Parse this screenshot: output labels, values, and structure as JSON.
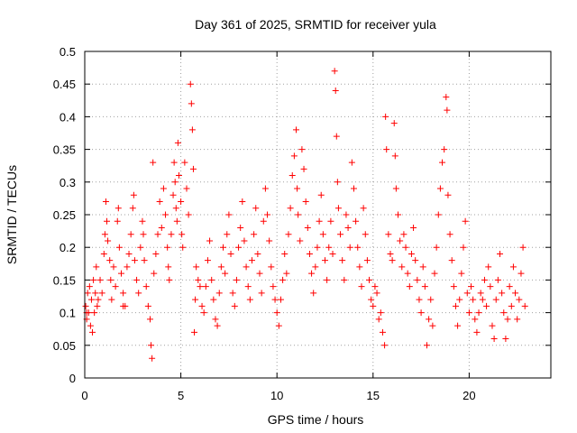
{
  "chart_data": {
    "type": "scatter",
    "title": "Day 361 of 2025, SRMTID for receiver yula",
    "xlabel": "GPS time / hours",
    "ylabel": "SRMTID / TECUs",
    "xlim": [
      0,
      24.25
    ],
    "ylim": [
      0,
      0.5
    ],
    "x_ticks": [
      0,
      5,
      10,
      15,
      20
    ],
    "x_tick_labels": [
      "0",
      "5",
      "10",
      "15",
      "20"
    ],
    "y_ticks": [
      0,
      0.05,
      0.1,
      0.15,
      0.2,
      0.25,
      0.3,
      0.35,
      0.4,
      0.45,
      0.5
    ],
    "y_tick_labels": [
      "0",
      "0.05",
      "0.1",
      "0.15",
      "0.2",
      "0.25",
      "0.3",
      "0.35",
      "0.4",
      "0.45",
      "0.5"
    ],
    "grid": true,
    "marker": "+",
    "color": "#ff0000",
    "series": [
      {
        "name": "SRMTID",
        "points": [
          [
            0.05,
            0.11
          ],
          [
            0.1,
            0.09
          ],
          [
            0.15,
            0.13
          ],
          [
            0.2,
            0.1
          ],
          [
            0.25,
            0.14
          ],
          [
            0.3,
            0.08
          ],
          [
            0.35,
            0.12
          ],
          [
            0.4,
            0.07
          ],
          [
            0.45,
            0.15
          ],
          [
            0.5,
            0.1
          ],
          [
            0.55,
            0.13
          ],
          [
            0.6,
            0.17
          ],
          [
            0.65,
            0.11
          ],
          [
            0.7,
            0.12
          ],
          [
            0.8,
            0.15
          ],
          [
            0.9,
            0.13
          ],
          [
            1.0,
            0.19
          ],
          [
            1.05,
            0.22
          ],
          [
            1.1,
            0.27
          ],
          [
            1.15,
            0.24
          ],
          [
            1.2,
            0.21
          ],
          [
            1.3,
            0.18
          ],
          [
            1.35,
            0.15
          ],
          [
            1.4,
            0.12
          ],
          [
            1.5,
            0.17
          ],
          [
            1.6,
            0.14
          ],
          [
            1.7,
            0.24
          ],
          [
            1.75,
            0.26
          ],
          [
            1.8,
            0.2
          ],
          [
            1.9,
            0.16
          ],
          [
            2.0,
            0.13
          ],
          [
            2.1,
            0.11
          ],
          [
            2.2,
            0.17
          ],
          [
            2.3,
            0.19
          ],
          [
            2.4,
            0.22
          ],
          [
            2.5,
            0.26
          ],
          [
            2.55,
            0.28
          ],
          [
            2.6,
            0.18
          ],
          [
            2.7,
            0.15
          ],
          [
            2.8,
            0.13
          ],
          [
            2.9,
            0.2
          ],
          [
            3.0,
            0.24
          ],
          [
            3.05,
            0.22
          ],
          [
            3.1,
            0.18
          ],
          [
            3.2,
            0.14
          ],
          [
            3.3,
            0.11
          ],
          [
            3.4,
            0.09
          ],
          [
            3.45,
            0.05
          ],
          [
            3.5,
            0.03
          ],
          [
            3.55,
            0.33
          ],
          [
            3.6,
            0.16
          ],
          [
            3.7,
            0.19
          ],
          [
            3.8,
            0.22
          ],
          [
            3.9,
            0.27
          ],
          [
            4.0,
            0.23
          ],
          [
            4.1,
            0.29
          ],
          [
            4.2,
            0.25
          ],
          [
            4.3,
            0.2
          ],
          [
            4.35,
            0.17
          ],
          [
            4.4,
            0.15
          ],
          [
            4.5,
            0.22
          ],
          [
            4.6,
            0.28
          ],
          [
            4.65,
            0.33
          ],
          [
            4.7,
            0.3
          ],
          [
            4.75,
            0.26
          ],
          [
            4.8,
            0.24
          ],
          [
            4.85,
            0.36
          ],
          [
            4.9,
            0.31
          ],
          [
            5.0,
            0.27
          ],
          [
            5.05,
            0.22
          ],
          [
            5.1,
            0.2
          ],
          [
            5.2,
            0.33
          ],
          [
            5.3,
            0.29
          ],
          [
            5.4,
            0.25
          ],
          [
            5.5,
            0.45
          ],
          [
            5.55,
            0.42
          ],
          [
            5.6,
            0.38
          ],
          [
            5.65,
            0.32
          ],
          [
            5.7,
            0.07
          ],
          [
            5.75,
            0.12
          ],
          [
            5.8,
            0.17
          ],
          [
            5.9,
            0.15
          ],
          [
            6.0,
            0.14
          ],
          [
            6.1,
            0.11
          ],
          [
            6.2,
            0.1
          ],
          [
            6.3,
            0.14
          ],
          [
            6.4,
            0.18
          ],
          [
            6.5,
            0.21
          ],
          [
            6.6,
            0.15
          ],
          [
            6.7,
            0.12
          ],
          [
            6.8,
            0.09
          ],
          [
            6.9,
            0.08
          ],
          [
            7.0,
            0.13
          ],
          [
            7.1,
            0.17
          ],
          [
            7.2,
            0.2
          ],
          [
            7.3,
            0.16
          ],
          [
            7.4,
            0.22
          ],
          [
            7.5,
            0.25
          ],
          [
            7.6,
            0.19
          ],
          [
            7.7,
            0.13
          ],
          [
            7.8,
            0.11
          ],
          [
            7.9,
            0.15
          ],
          [
            8.0,
            0.2
          ],
          [
            8.1,
            0.23
          ],
          [
            8.2,
            0.27
          ],
          [
            8.3,
            0.21
          ],
          [
            8.4,
            0.17
          ],
          [
            8.5,
            0.14
          ],
          [
            8.6,
            0.12
          ],
          [
            8.7,
            0.18
          ],
          [
            8.8,
            0.22
          ],
          [
            8.9,
            0.26
          ],
          [
            9.0,
            0.19
          ],
          [
            9.1,
            0.16
          ],
          [
            9.2,
            0.13
          ],
          [
            9.3,
            0.24
          ],
          [
            9.4,
            0.29
          ],
          [
            9.5,
            0.25
          ],
          [
            9.6,
            0.21
          ],
          [
            9.7,
            0.17
          ],
          [
            9.8,
            0.14
          ],
          [
            9.9,
            0.12
          ],
          [
            10.0,
            0.1
          ],
          [
            10.1,
            0.08
          ],
          [
            10.2,
            0.12
          ],
          [
            10.3,
            0.15
          ],
          [
            10.4,
            0.19
          ],
          [
            10.5,
            0.16
          ],
          [
            10.6,
            0.22
          ],
          [
            10.7,
            0.26
          ],
          [
            10.8,
            0.31
          ],
          [
            10.9,
            0.34
          ],
          [
            11.0,
            0.38
          ],
          [
            11.05,
            0.29
          ],
          [
            11.1,
            0.25
          ],
          [
            11.2,
            0.21
          ],
          [
            11.3,
            0.35
          ],
          [
            11.4,
            0.32
          ],
          [
            11.5,
            0.27
          ],
          [
            11.6,
            0.23
          ],
          [
            11.7,
            0.19
          ],
          [
            11.8,
            0.16
          ],
          [
            11.9,
            0.13
          ],
          [
            12.0,
            0.17
          ],
          [
            12.1,
            0.2
          ],
          [
            12.2,
            0.24
          ],
          [
            12.3,
            0.28
          ],
          [
            12.4,
            0.22
          ],
          [
            12.5,
            0.18
          ],
          [
            12.6,
            0.15
          ],
          [
            12.7,
            0.2
          ],
          [
            12.8,
            0.24
          ],
          [
            12.9,
            0.19
          ],
          [
            13.0,
            0.47
          ],
          [
            13.05,
            0.44
          ],
          [
            13.1,
            0.37
          ],
          [
            13.15,
            0.3
          ],
          [
            13.2,
            0.26
          ],
          [
            13.3,
            0.22
          ],
          [
            13.4,
            0.18
          ],
          [
            13.5,
            0.15
          ],
          [
            13.6,
            0.25
          ],
          [
            13.7,
            0.23
          ],
          [
            13.8,
            0.2
          ],
          [
            13.9,
            0.33
          ],
          [
            14.0,
            0.29
          ],
          [
            14.1,
            0.24
          ],
          [
            14.2,
            0.2
          ],
          [
            14.3,
            0.17
          ],
          [
            14.4,
            0.14
          ],
          [
            14.5,
            0.26
          ],
          [
            14.6,
            0.22
          ],
          [
            14.7,
            0.18
          ],
          [
            14.8,
            0.15
          ],
          [
            14.9,
            0.12
          ],
          [
            15.0,
            0.11
          ],
          [
            15.1,
            0.14
          ],
          [
            15.2,
            0.13
          ],
          [
            15.3,
            0.09
          ],
          [
            15.4,
            0.1
          ],
          [
            15.5,
            0.07
          ],
          [
            15.6,
            0.05
          ],
          [
            15.65,
            0.4
          ],
          [
            15.7,
            0.35
          ],
          [
            15.8,
            0.22
          ],
          [
            15.9,
            0.19
          ],
          [
            16.0,
            0.18
          ],
          [
            16.1,
            0.39
          ],
          [
            16.15,
            0.34
          ],
          [
            16.2,
            0.29
          ],
          [
            16.3,
            0.25
          ],
          [
            16.4,
            0.21
          ],
          [
            16.5,
            0.17
          ],
          [
            16.6,
            0.22
          ],
          [
            16.7,
            0.2
          ],
          [
            16.8,
            0.16
          ],
          [
            16.9,
            0.14
          ],
          [
            17.0,
            0.19
          ],
          [
            17.1,
            0.23
          ],
          [
            17.2,
            0.18
          ],
          [
            17.3,
            0.15
          ],
          [
            17.4,
            0.12
          ],
          [
            17.5,
            0.1
          ],
          [
            17.6,
            0.17
          ],
          [
            17.7,
            0.14
          ],
          [
            17.8,
            0.05
          ],
          [
            17.9,
            0.09
          ],
          [
            18.0,
            0.12
          ],
          [
            18.1,
            0.08
          ],
          [
            18.2,
            0.16
          ],
          [
            18.3,
            0.2
          ],
          [
            18.4,
            0.25
          ],
          [
            18.5,
            0.29
          ],
          [
            18.6,
            0.33
          ],
          [
            18.7,
            0.35
          ],
          [
            18.8,
            0.43
          ],
          [
            18.85,
            0.41
          ],
          [
            18.9,
            0.28
          ],
          [
            19.0,
            0.22
          ],
          [
            19.1,
            0.18
          ],
          [
            19.2,
            0.14
          ],
          [
            19.3,
            0.11
          ],
          [
            19.4,
            0.08
          ],
          [
            19.5,
            0.12
          ],
          [
            19.6,
            0.16
          ],
          [
            19.7,
            0.2
          ],
          [
            19.8,
            0.24
          ],
          [
            19.9,
            0.13
          ],
          [
            20.0,
            0.1
          ],
          [
            20.1,
            0.14
          ],
          [
            20.2,
            0.12
          ],
          [
            20.3,
            0.09
          ],
          [
            20.4,
            0.07
          ],
          [
            20.5,
            0.1
          ],
          [
            20.6,
            0.13
          ],
          [
            20.7,
            0.12
          ],
          [
            20.8,
            0.15
          ],
          [
            20.9,
            0.11
          ],
          [
            21.0,
            0.17
          ],
          [
            21.1,
            0.14
          ],
          [
            21.2,
            0.08
          ],
          [
            21.3,
            0.06
          ],
          [
            21.4,
            0.12
          ],
          [
            21.5,
            0.15
          ],
          [
            21.6,
            0.19
          ],
          [
            21.7,
            0.13
          ],
          [
            21.8,
            0.1
          ],
          [
            21.9,
            0.06
          ],
          [
            22.0,
            0.09
          ],
          [
            22.1,
            0.14
          ],
          [
            22.2,
            0.11
          ],
          [
            22.3,
            0.17
          ],
          [
            22.4,
            0.13
          ],
          [
            22.5,
            0.09
          ],
          [
            22.6,
            0.12
          ],
          [
            22.7,
            0.16
          ],
          [
            22.8,
            0.2
          ],
          [
            22.9,
            0.11
          ],
          [
            0.1,
            0.1
          ],
          [
            2.0,
            0.11
          ]
        ]
      }
    ]
  }
}
